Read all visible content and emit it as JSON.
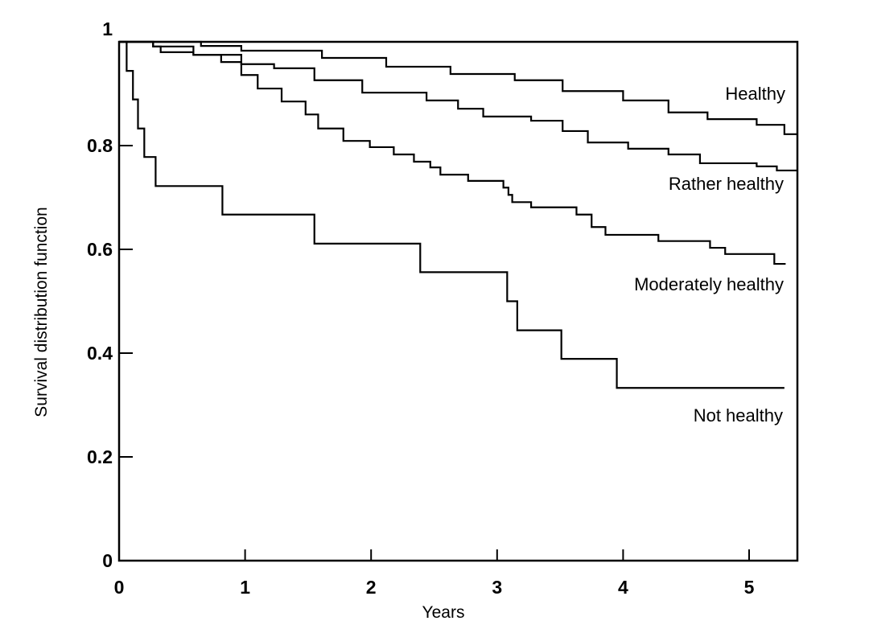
{
  "chart_data": {
    "type": "line",
    "step": true,
    "title": "",
    "xlabel": "Years",
    "ylabel": "Survival distribution function",
    "xlim": [
      0,
      5.38
    ],
    "ylim": [
      0,
      1
    ],
    "xticks": [
      "0",
      "1",
      "2",
      "3",
      "4",
      "5"
    ],
    "yticks": [
      "0",
      "0.2",
      "0.4",
      "0.6",
      "0.8",
      "1"
    ],
    "grid": false,
    "legend": "inline labels at right end of each curve",
    "series": [
      {
        "name": "Healthy",
        "end": 5.38,
        "points": [
          [
            0,
            1
          ],
          [
            0.65,
            0.992
          ],
          [
            0.97,
            0.983
          ],
          [
            1.61,
            0.969
          ],
          [
            2.12,
            0.952
          ],
          [
            2.63,
            0.938
          ],
          [
            3.14,
            0.926
          ],
          [
            3.52,
            0.905
          ],
          [
            4.0,
            0.887
          ],
          [
            4.36,
            0.864
          ],
          [
            4.67,
            0.851
          ],
          [
            5.06,
            0.84
          ],
          [
            5.28,
            0.822
          ]
        ]
      },
      {
        "name": "Rather healthy",
        "end": 5.38,
        "points": [
          [
            0,
            1
          ],
          [
            0.27,
            0.991
          ],
          [
            0.33,
            0.98
          ],
          [
            0.59,
            0.975
          ],
          [
            0.97,
            0.957
          ],
          [
            1.23,
            0.949
          ],
          [
            1.55,
            0.926
          ],
          [
            1.93,
            0.902
          ],
          [
            2.44,
            0.887
          ],
          [
            2.69,
            0.871
          ],
          [
            2.89,
            0.856
          ],
          [
            3.27,
            0.848
          ],
          [
            3.52,
            0.828
          ],
          [
            3.72,
            0.806
          ],
          [
            4.04,
            0.794
          ],
          [
            4.36,
            0.783
          ],
          [
            4.61,
            0.766
          ],
          [
            5.06,
            0.76
          ],
          [
            5.22,
            0.752
          ]
        ]
      },
      {
        "name": "Moderately healthy",
        "end": 5.29,
        "points": [
          [
            0,
            1
          ],
          [
            0.27,
            0.991
          ],
          [
            0.59,
            0.975
          ],
          [
            0.81,
            0.961
          ],
          [
            0.97,
            0.936
          ],
          [
            1.1,
            0.91
          ],
          [
            1.29,
            0.885
          ],
          [
            1.48,
            0.86
          ],
          [
            1.58,
            0.833
          ],
          [
            1.78,
            0.809
          ],
          [
            1.99,
            0.797
          ],
          [
            2.18,
            0.783
          ],
          [
            2.34,
            0.769
          ],
          [
            2.47,
            0.758
          ],
          [
            2.55,
            0.744
          ],
          [
            2.77,
            0.732
          ],
          [
            3.05,
            0.719
          ],
          [
            3.09,
            0.705
          ],
          [
            3.12,
            0.691
          ],
          [
            3.27,
            0.681
          ],
          [
            3.63,
            0.667
          ],
          [
            3.75,
            0.643
          ],
          [
            3.86,
            0.628
          ],
          [
            4.28,
            0.616
          ],
          [
            4.69,
            0.603
          ],
          [
            4.81,
            0.591
          ],
          [
            5.2,
            0.572
          ]
        ]
      },
      {
        "name": "Not healthy",
        "end": 5.28,
        "points": [
          [
            0,
            1
          ],
          [
            0.06,
            0.944
          ],
          [
            0.11,
            0.889
          ],
          [
            0.15,
            0.833
          ],
          [
            0.2,
            0.778
          ],
          [
            0.29,
            0.722
          ],
          [
            0.82,
            0.667
          ],
          [
            1.55,
            0.611
          ],
          [
            2.39,
            0.556
          ],
          [
            3.08,
            0.5
          ],
          [
            3.16,
            0.444
          ],
          [
            3.51,
            0.389
          ],
          [
            3.95,
            0.333
          ]
        ]
      }
    ],
    "colors": {
      "line": "#000000",
      "background": "#ffffff"
    }
  }
}
